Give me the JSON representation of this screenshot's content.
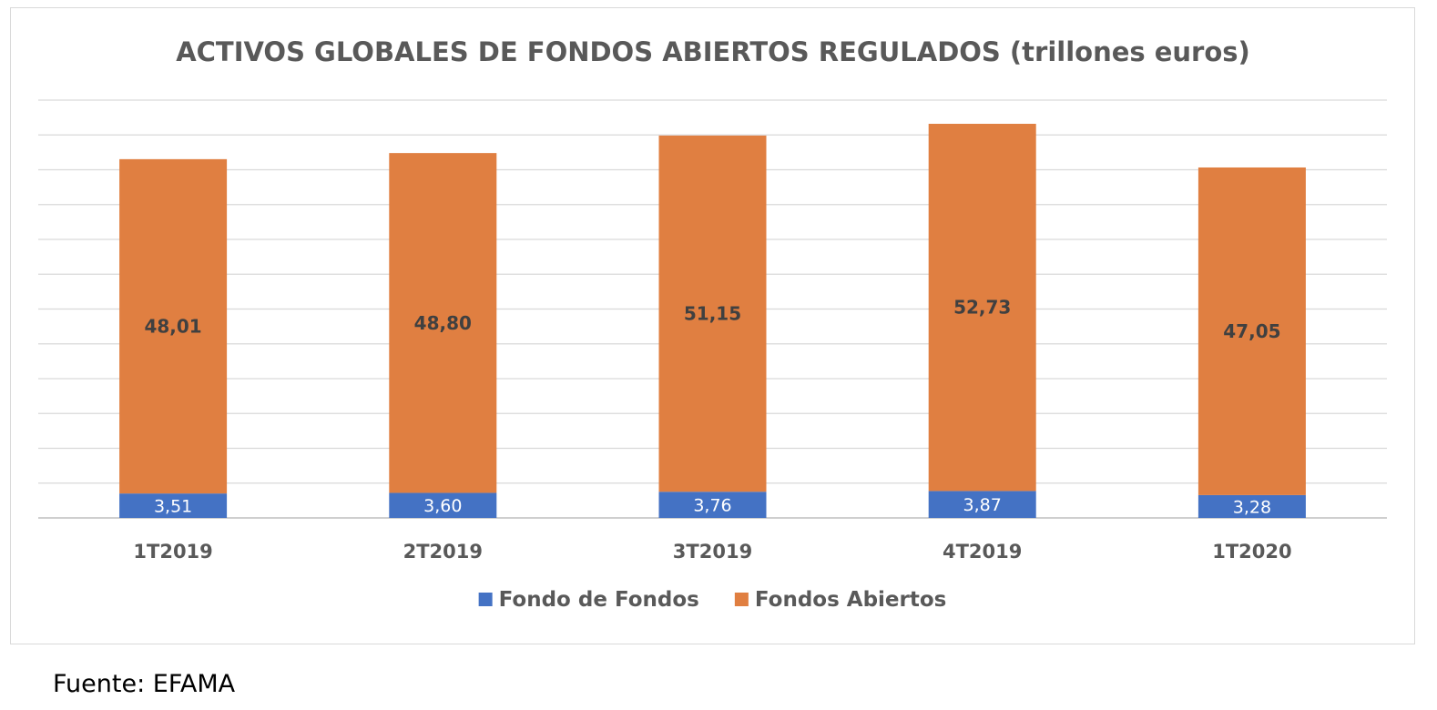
{
  "chart_data": {
    "type": "bar",
    "stacked": true,
    "title": "ACTIVOS GLOBALES DE FONDOS ABIERTOS REGULADOS (trillones euros)",
    "categories": [
      "1T2019",
      "2T2019",
      "3T2019",
      "4T2019",
      "1T2020"
    ],
    "series": [
      {
        "name": "Fondo de Fondos",
        "color": "#4472c4",
        "values": [
          3.51,
          3.6,
          3.76,
          3.87,
          3.28
        ],
        "labels": [
          "3,51",
          "3,60",
          "3,76",
          "3,87",
          "3,28"
        ]
      },
      {
        "name": "Fondos Abiertos",
        "color": "#e07f41",
        "values": [
          48.01,
          48.8,
          51.15,
          52.73,
          47.05
        ],
        "labels": [
          "48,01",
          "48,80",
          "51,15",
          "52,73",
          "47,05"
        ]
      }
    ],
    "ylim": [
      0,
      60
    ],
    "grid": true,
    "gridlines": 12,
    "legend": "bottom"
  },
  "source": "Fuente: EFAMA"
}
